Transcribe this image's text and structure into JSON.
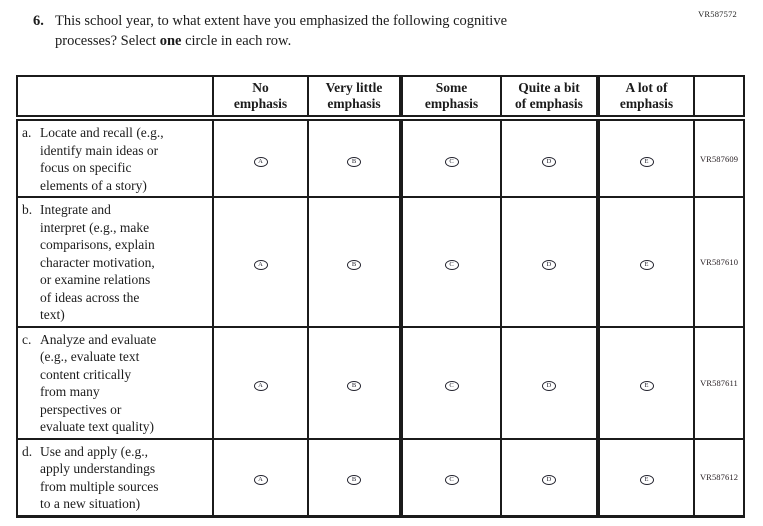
{
  "page": {
    "code_top_right": "VR587572"
  },
  "question": {
    "number": "6.",
    "line1": "This school year, to what extent have you emphasized the following cognitive",
    "line2_before": "processes? Select ",
    "line2_bold": "one",
    "line2_after": " circle in each row."
  },
  "table": {
    "column_headers": [
      "No\nemphasis",
      "Very little\nemphasis",
      "Some\nemphasis",
      "Quite a bit\nof emphasis",
      "A lot of\nemphasis"
    ],
    "options": [
      "A",
      "B",
      "C",
      "D",
      "E"
    ],
    "rows": [
      {
        "label": "a.",
        "text": "Locate and recall (e.g.,\nidentify main ideas or\nfocus on specific\nelements of a story)",
        "code": "VR587609"
      },
      {
        "label": "b.",
        "text": "Integrate and\ninterpret (e.g., make\ncomparisons, explain\ncharacter motivation,\nor examine relations\nof ideas across the\ntext)",
        "code": "VR587610"
      },
      {
        "label": "c.",
        "text": "Analyze and evaluate\n(e.g., evaluate text\ncontent critically\nfrom many\nperspectives or\nevaluate text quality)",
        "code": "VR587611"
      },
      {
        "label": "d.",
        "text": "Use and apply (e.g.,\napply understandings\nfrom multiple sources\nto a new situation)",
        "code": "VR587612"
      }
    ]
  },
  "colors": {
    "ink": "#1b1b1b",
    "paper": "#ffffff"
  }
}
